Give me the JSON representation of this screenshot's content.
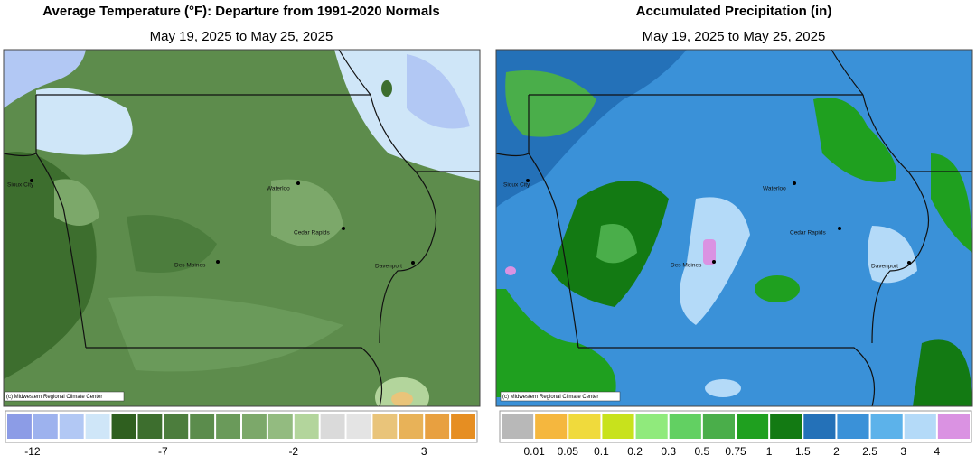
{
  "panels": [
    {
      "title": "Average Temperature (°F): Departure from 1991-2020 Normals",
      "subtitle": "May 19, 2025 to May 25, 2025",
      "cities": [
        "Sioux City",
        "Waterloo",
        "Cedar Rapids",
        "Des Moines",
        "Davenport"
      ],
      "credit": "(c) Midwestern Regional Climate Center",
      "legend": {
        "colors": [
          "#8c9ce6",
          "#9db2ee",
          "#b2c8f4",
          "#cfe6f8",
          "#2f5f1f",
          "#3d6e2e",
          "#4c7d3d",
          "#5b8c4c",
          "#6a9a5a",
          "#7ca86a",
          "#93bb80",
          "#b3d59c",
          "#dadada",
          "#e4e4e4",
          "#e9c47a",
          "#e8b258",
          "#e8a040",
          "#e68e22"
        ],
        "labels": [
          "-12",
          "-7",
          "-2",
          "3"
        ]
      }
    },
    {
      "title": "Accumulated Precipitation (in)",
      "subtitle": "May 19, 2025 to May 25, 2025",
      "cities": [
        "Sioux City",
        "Waterloo",
        "Cedar Rapids",
        "Des Moines",
        "Davenport"
      ],
      "credit": "(c) Midwestern Regional Climate Center",
      "legend": {
        "colors": [
          "#b8b8b8",
          "#f5b73e",
          "#f0da3c",
          "#c8e21c",
          "#90ea7c",
          "#62d062",
          "#4aae4a",
          "#1fa01f",
          "#137a13",
          "#2471b8",
          "#3a91d8",
          "#5cb2ea",
          "#b4daf8",
          "#da92e2"
        ],
        "labels": [
          "0.01",
          "0.05",
          "0.1",
          "0.2",
          "0.3",
          "0.5",
          "0.75",
          "1",
          "1.5",
          "2",
          "2.5",
          "3",
          "4"
        ]
      }
    }
  ]
}
